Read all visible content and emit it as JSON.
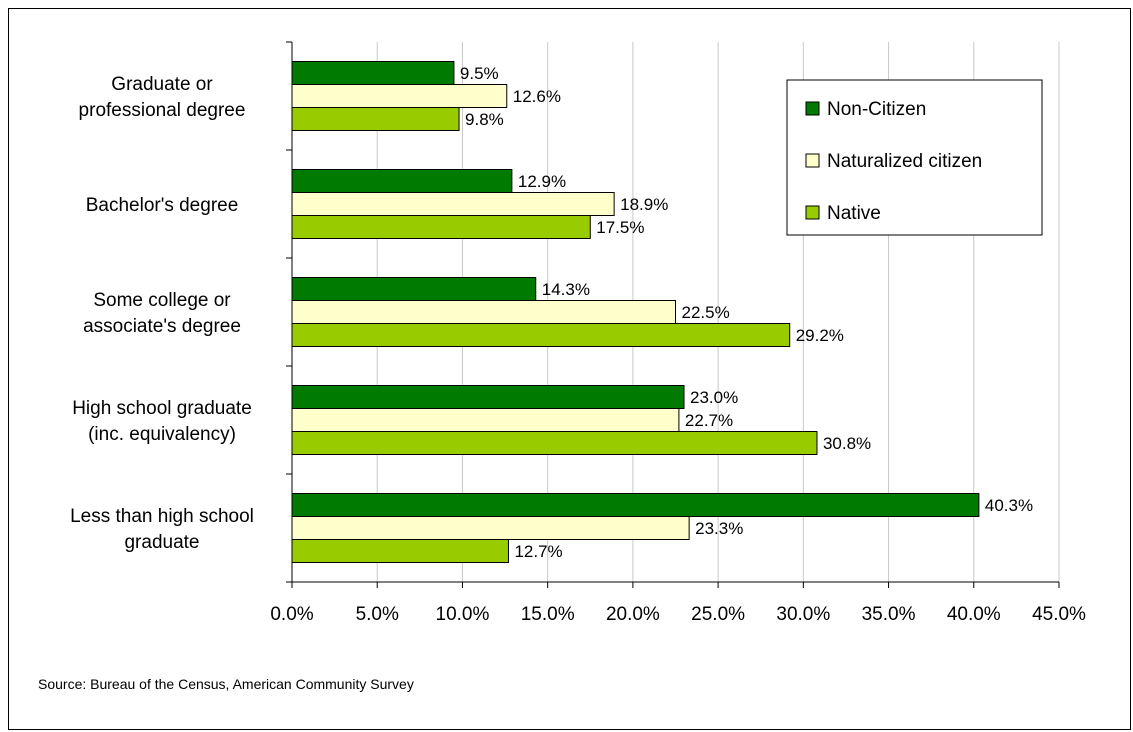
{
  "chart_data": {
    "type": "bar",
    "orientation": "horizontal",
    "categories": [
      [
        "Graduate or",
        "professional degree"
      ],
      [
        "Bachelor's degree"
      ],
      [
        "Some college or",
        "associate's degree"
      ],
      [
        "High school graduate",
        "(inc. equivalency)"
      ],
      [
        "Less than high school",
        "graduate"
      ]
    ],
    "series": [
      {
        "name": "Non-Citizen",
        "color": "#007a00",
        "values": [
          9.5,
          12.9,
          14.3,
          23.0,
          40.3
        ],
        "labels": [
          "9.5%",
          "12.9%",
          "14.3%",
          "23.0%",
          "40.3%"
        ]
      },
      {
        "name": "Naturalized citizen",
        "color": "#ffffcc",
        "values": [
          12.6,
          18.9,
          22.5,
          22.7,
          23.3
        ],
        "labels": [
          "12.6%",
          "18.9%",
          "22.5%",
          "22.7%",
          "23.3%"
        ]
      },
      {
        "name": "Native",
        "color": "#99cc00",
        "values": [
          9.8,
          17.5,
          29.2,
          30.8,
          12.7
        ],
        "labels": [
          "9.8%",
          "17.5%",
          "29.2%",
          "30.8%",
          "12.7%"
        ]
      }
    ],
    "xlim": [
      0,
      45
    ],
    "xticks": [
      0,
      5,
      10,
      15,
      20,
      25,
      30,
      35,
      40,
      45
    ],
    "xtick_labels": [
      "0.0%",
      "5.0%",
      "10.0%",
      "15.0%",
      "20.0%",
      "25.0%",
      "30.0%",
      "35.0%",
      "40.0%",
      "45.0%"
    ],
    "grid": "vertical",
    "legend": "top-right"
  },
  "source": "Source: Bureau of the Census, American Community Survey"
}
